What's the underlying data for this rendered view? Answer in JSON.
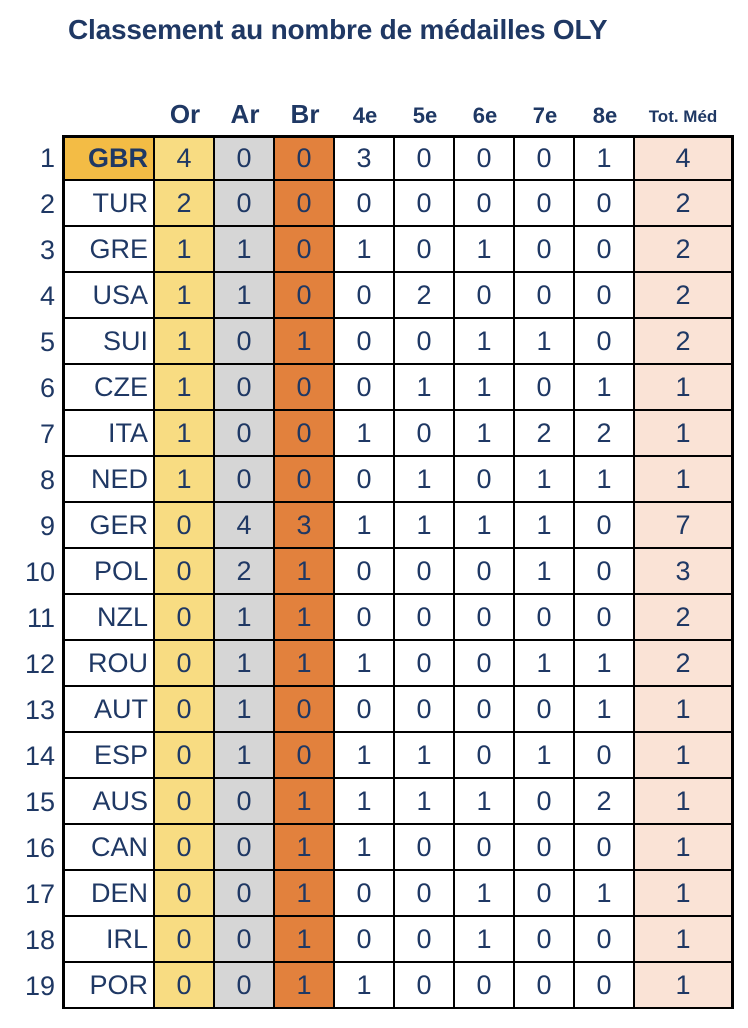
{
  "title": "Classement au nombre de médailles OLY",
  "colors": {
    "text": "#1F3864",
    "border": "#000000",
    "gold": "#F3BC45",
    "or": "#F8DC82",
    "ar": "#D6D6D6",
    "br": "#E2813D",
    "tot": "#FAE3D6"
  },
  "chart_data": {
    "type": "table",
    "title": "Classement au nombre de médailles OLY",
    "columns": [
      "Or",
      "Ar",
      "Br",
      "4e",
      "5e",
      "6e",
      "7e",
      "8e",
      "Tot. Méd"
    ],
    "rows": [
      {
        "rank": "1",
        "country": "GBR",
        "highlight": true,
        "values": [
          4,
          0,
          0,
          3,
          0,
          0,
          0,
          1,
          4
        ]
      },
      {
        "rank": "2",
        "country": "TUR",
        "highlight": false,
        "values": [
          2,
          0,
          0,
          0,
          0,
          0,
          0,
          0,
          2
        ]
      },
      {
        "rank": "3",
        "country": "GRE",
        "highlight": false,
        "values": [
          1,
          1,
          0,
          1,
          0,
          1,
          0,
          0,
          2
        ]
      },
      {
        "rank": "4",
        "country": "USA",
        "highlight": false,
        "values": [
          1,
          1,
          0,
          0,
          2,
          0,
          0,
          0,
          2
        ]
      },
      {
        "rank": "5",
        "country": "SUI",
        "highlight": false,
        "values": [
          1,
          0,
          1,
          0,
          0,
          1,
          1,
          0,
          2
        ]
      },
      {
        "rank": "6",
        "country": "CZE",
        "highlight": false,
        "values": [
          1,
          0,
          0,
          0,
          1,
          1,
          0,
          1,
          1
        ]
      },
      {
        "rank": "7",
        "country": "ITA",
        "highlight": false,
        "values": [
          1,
          0,
          0,
          1,
          0,
          1,
          2,
          2,
          1
        ]
      },
      {
        "rank": "8",
        "country": "NED",
        "highlight": false,
        "values": [
          1,
          0,
          0,
          0,
          1,
          0,
          1,
          1,
          1
        ]
      },
      {
        "rank": "9",
        "country": "GER",
        "highlight": false,
        "values": [
          0,
          4,
          3,
          1,
          1,
          1,
          1,
          0,
          7
        ]
      },
      {
        "rank": "10",
        "country": "POL",
        "highlight": false,
        "values": [
          0,
          2,
          1,
          0,
          0,
          0,
          1,
          0,
          3
        ]
      },
      {
        "rank": "11",
        "country": "NZL",
        "highlight": false,
        "values": [
          0,
          1,
          1,
          0,
          0,
          0,
          0,
          0,
          2
        ]
      },
      {
        "rank": "12",
        "country": "ROU",
        "highlight": false,
        "values": [
          0,
          1,
          1,
          1,
          0,
          0,
          1,
          1,
          2
        ]
      },
      {
        "rank": "13",
        "country": "AUT",
        "highlight": false,
        "values": [
          0,
          1,
          0,
          0,
          0,
          0,
          0,
          1,
          1
        ]
      },
      {
        "rank": "14",
        "country": "ESP",
        "highlight": false,
        "values": [
          0,
          1,
          0,
          1,
          1,
          0,
          1,
          0,
          1
        ]
      },
      {
        "rank": "15",
        "country": "AUS",
        "highlight": false,
        "values": [
          0,
          0,
          1,
          1,
          1,
          1,
          0,
          2,
          1
        ]
      },
      {
        "rank": "16",
        "country": "CAN",
        "highlight": false,
        "values": [
          0,
          0,
          1,
          1,
          0,
          0,
          0,
          0,
          1
        ]
      },
      {
        "rank": "17",
        "country": "DEN",
        "highlight": false,
        "values": [
          0,
          0,
          1,
          0,
          0,
          1,
          0,
          1,
          1
        ]
      },
      {
        "rank": "18",
        "country": "IRL",
        "highlight": false,
        "values": [
          0,
          0,
          1,
          0,
          0,
          1,
          0,
          0,
          1
        ]
      },
      {
        "rank": "19",
        "country": "POR",
        "highlight": false,
        "values": [
          0,
          0,
          1,
          1,
          0,
          0,
          0,
          0,
          1
        ]
      }
    ]
  }
}
